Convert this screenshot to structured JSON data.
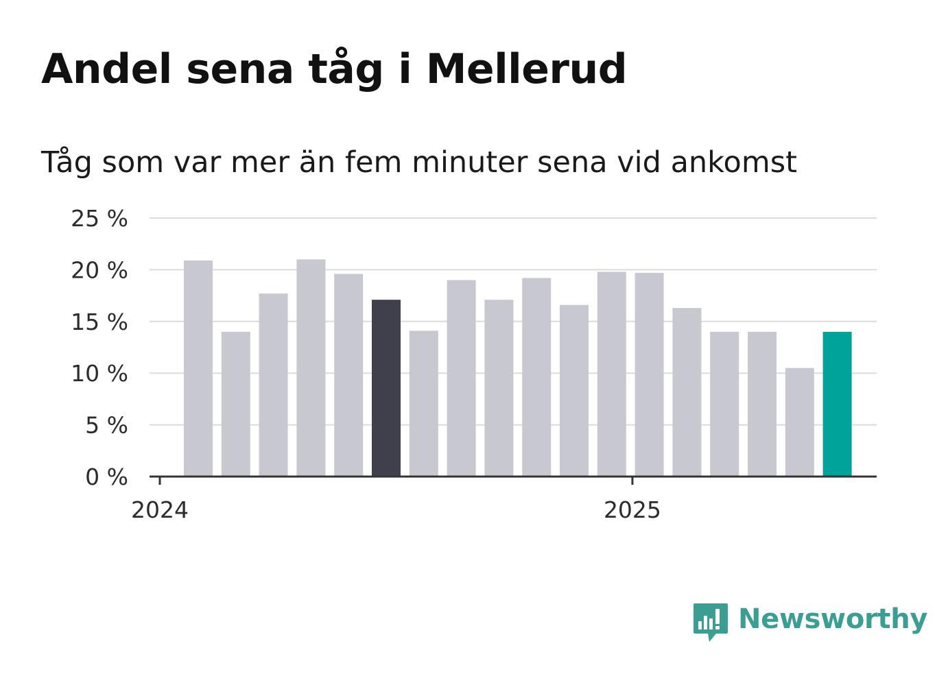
{
  "header": {
    "title": "Andel sena tåg i Mellerud",
    "subtitle": "Tåg som var mer än fem minuter sena vid ankomst"
  },
  "brand": {
    "name": "Newsworthy",
    "color": "#3a9e92"
  },
  "colors": {
    "bar_default": "#c8c8d0",
    "bar_highlight": "#403f4c",
    "bar_latest": "#00a39a",
    "grid": "#dcdcdc",
    "axis": "#333333"
  },
  "chart_data": {
    "type": "bar",
    "title": "Andel sena tåg i Mellerud",
    "subtitle": "Tåg som var mer än fem minuter sena vid ankomst",
    "xlabel": "",
    "ylabel": "",
    "unit": "%",
    "ylim": [
      0,
      25
    ],
    "yticks": [
      0,
      5,
      10,
      15,
      20,
      25
    ],
    "ytick_labels": [
      "0 %",
      "5 %",
      "10 %",
      "15 %",
      "20 %",
      "25 %"
    ],
    "x_tick_labels": [
      {
        "label": "2024",
        "date": "2024-01-01"
      },
      {
        "label": "2025",
        "date": "2025-01-01"
      }
    ],
    "grid": true,
    "legend": "none",
    "categories": [
      "2024-01",
      "2024-02",
      "2024-03",
      "2024-04",
      "2024-05",
      "2024-06",
      "2024-07",
      "2024-08",
      "2024-09",
      "2024-10",
      "2024-11",
      "2024-12",
      "2025-01",
      "2025-02",
      "2025-03",
      "2025-04",
      "2025-05",
      "2025-06"
    ],
    "values": [
      20.9,
      14.0,
      17.7,
      21.0,
      19.6,
      17.1,
      14.1,
      19.0,
      17.1,
      19.2,
      16.6,
      19.8,
      19.7,
      16.3,
      14.0,
      14.0,
      10.5,
      14.0
    ],
    "highlight_index": 5,
    "latest_index": 17
  }
}
